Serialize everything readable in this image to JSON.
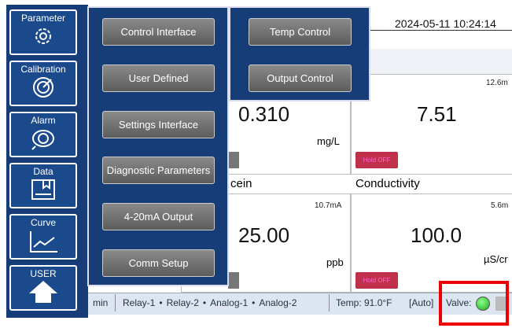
{
  "header": {
    "datetime": "2024-05-11 10:24:14"
  },
  "sidebar": [
    {
      "label": "Parameter"
    },
    {
      "label": "Calibration"
    },
    {
      "label": "Alarm"
    },
    {
      "label": "Data"
    },
    {
      "label": "Curve"
    },
    {
      "label": "USER"
    }
  ],
  "menu": [
    "Control Interface",
    "User Defined",
    "Settings Interface",
    "Diagnostic Parameters",
    "4-20mA Output",
    "Comm Setup"
  ],
  "submenu": [
    "Temp Control",
    "Output Control"
  ],
  "readings": [
    {
      "value": "0.310",
      "unit": "mg/L"
    },
    {
      "current": "12.6m",
      "value": "7.51",
      "hold": "Hold OFF"
    },
    {
      "name": "cein",
      "current": "10.7mA",
      "value": "25.00",
      "unit": "ppb"
    },
    {
      "name": "Conductivity",
      "current": "5.6m",
      "value": "100.0",
      "unit": "µS/cr",
      "hold": "Hold OFF"
    }
  ],
  "status": {
    "interval": "min",
    "outputs": [
      "Relay-1",
      "Relay-2",
      "Analog-1",
      "Analog-2"
    ],
    "separator": "•",
    "temp": "Temp: 91.0°F",
    "mode": "[Auto]",
    "valve": "Valve:"
  }
}
